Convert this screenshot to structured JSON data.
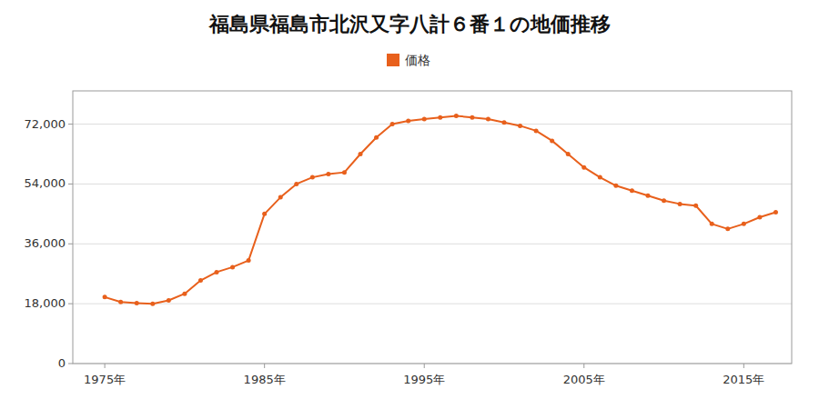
{
  "chart_data": {
    "type": "line",
    "title": "福島県福島市北沢又字八計６番１の地価推移",
    "x": [
      1975,
      1976,
      1977,
      1978,
      1979,
      1980,
      1981,
      1982,
      1983,
      1984,
      1985,
      1986,
      1987,
      1988,
      1989,
      1990,
      1991,
      1992,
      1993,
      1994,
      1995,
      1996,
      1997,
      1998,
      1999,
      2000,
      2001,
      2002,
      2003,
      2004,
      2005,
      2006,
      2007,
      2008,
      2009,
      2010,
      2011,
      2012,
      2013,
      2014,
      2015,
      2016,
      2017
    ],
    "series": [
      {
        "name": "価格",
        "color": "#E8601C",
        "marker": "circle",
        "values": [
          20000,
          18500,
          18200,
          18000,
          19000,
          21000,
          25000,
          27500,
          29000,
          31000,
          45000,
          50000,
          54000,
          56000,
          57000,
          57500,
          63000,
          68000,
          72000,
          73000,
          73500,
          74000,
          74500,
          74000,
          73500,
          72500,
          71500,
          70000,
          67000,
          63000,
          59000,
          56000,
          53500,
          52000,
          50500,
          49000,
          48000,
          47500,
          42000,
          40500,
          42000,
          44000,
          45500
        ]
      }
    ],
    "xlim": [
      1973,
      2018
    ],
    "xticks": [
      {
        "value": 1975,
        "label": "1975年"
      },
      {
        "value": 1985,
        "label": "1985年"
      },
      {
        "value": 1995,
        "label": "1995年"
      },
      {
        "value": 2005,
        "label": "2005年"
      },
      {
        "value": 2015,
        "label": "2015年"
      }
    ],
    "ylim": [
      0,
      82000
    ],
    "yticks": [
      0,
      {
        "value": 18000,
        "label": "18,000"
      },
      {
        "value": 36000,
        "label": "36,000"
      },
      {
        "value": 54000,
        "label": "54,000"
      },
      {
        "value": 72000,
        "label": "72,000"
      }
    ],
    "grid": true,
    "legend": "top"
  }
}
